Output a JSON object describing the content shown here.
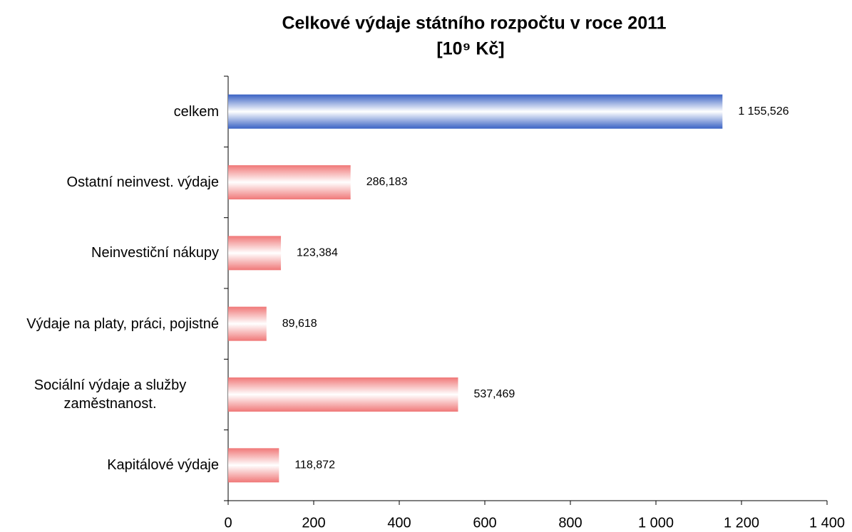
{
  "chart_data": {
    "type": "hbar",
    "title": "Celkové výdaje státního rozpočtu v roce 2011",
    "subtitle": "[10⁹ Kč]",
    "categories": [
      "celkem",
      "Ostatní neinvest. výdaje",
      "Neinvestiční nákupy",
      "Výdaje na platy, práci, pojistné",
      "Sociální výdaje a služby zaměstnanost.",
      "Kapitálové výdaje"
    ],
    "values": [
      1155.526,
      286.183,
      123.384,
      89.618,
      537.469,
      118.872
    ],
    "value_labels": [
      "1 155,526",
      "286,183",
      "123,384",
      "89,618",
      "537,469",
      "118,872"
    ],
    "colors": [
      "#3a62c4",
      "#f07878",
      "#f07878",
      "#f07878",
      "#f07878",
      "#f07878"
    ],
    "xlim": [
      0,
      1400
    ],
    "xticks": [
      0,
      200,
      400,
      600,
      800,
      {
        "value": 1000,
        "label": "1 000"
      },
      {
        "value": 1200,
        "label": "1 200"
      },
      {
        "value": 1400,
        "label": "1 400"
      }
    ]
  }
}
